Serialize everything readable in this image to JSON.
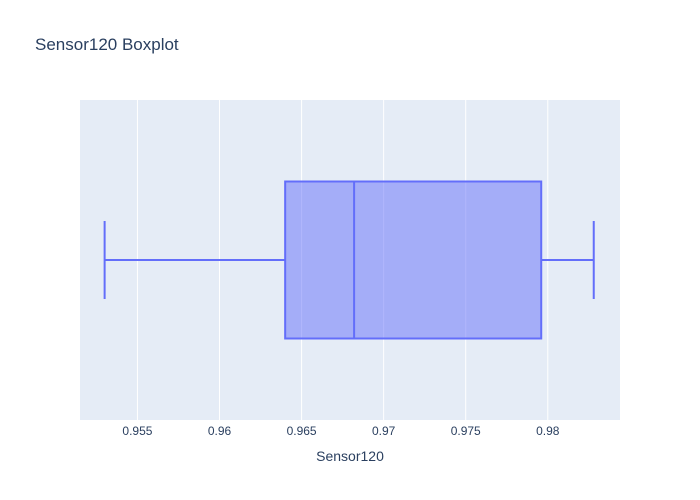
{
  "chart_data": {
    "type": "box",
    "title": "Sensor120 Boxplot",
    "xlabel": "Sensor120",
    "ylabel": "",
    "orientation": "horizontal",
    "xlim": [
      0.9515,
      0.9844
    ],
    "xticks": [
      0.955,
      0.96,
      0.965,
      0.97,
      0.975,
      0.98
    ],
    "xtick_labels": [
      "0.955",
      "0.96",
      "0.965",
      "0.97",
      "0.975",
      "0.98"
    ],
    "grid": true,
    "series": [
      {
        "min": 0.953,
        "q1": 0.964,
        "median": 0.9682,
        "q3": 0.9796,
        "max": 0.9828
      }
    ],
    "colors": {
      "plot_bg": "#e5ecf6",
      "grid": "#ffffff",
      "box_line": "#636efa",
      "box_fill": "rgba(99,110,250,0.5)",
      "text": "#2a3f5f"
    }
  }
}
